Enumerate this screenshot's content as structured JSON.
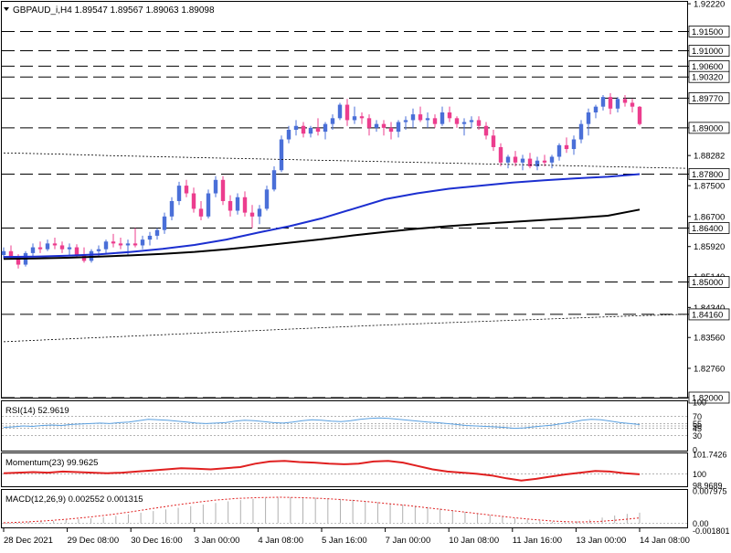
{
  "colors": {
    "bull": "#4a6fd8",
    "bear": "#ec3d8e",
    "ma_fast": "#1c2fd0",
    "ma_slow": "#000000",
    "rsi": "#5aa0e0",
    "momentum": "#e02020",
    "macd_hist": "#b0b0b0",
    "macd_signal": "#e02020",
    "level_line": "#000000",
    "label_bg": "#ffffff"
  },
  "chart_data": [
    {
      "type": "candlestick",
      "title": "GBPAUD_i,H4  1.89547 1.89567 1.89063 1.89098",
      "ylim": [
        1.82,
        1.9227
      ],
      "yticks": [
        "1.92220",
        "1.91500",
        "1.91000",
        "1.90600",
        "1.90320",
        "1.89770",
        "1.89000",
        "1.88282",
        "1.87800",
        "1.87500",
        "1.86700",
        "1.86400",
        "1.85920",
        "1.85140",
        "1.85000",
        "1.84340",
        "1.84160",
        "1.83560",
        "1.82760",
        "1.82000"
      ],
      "levels": [
        "1.91500",
        "1.91000",
        "1.90600",
        "1.90320",
        "1.89770",
        "1.89000",
        "1.87800",
        "1.86400",
        "1.85000",
        "1.84160",
        "1.82000"
      ],
      "xticks": [
        "28 Dec 2021",
        "29 Dec 08:00",
        "30 Dec 16:00",
        "3 Jan 00:00",
        "4 Jan 08:00",
        "5 Jan 16:00",
        "7 Jan 00:00",
        "10 Jan 08:00",
        "11 Jan 16:00",
        "13 Jan 00:00",
        "14 Jan 08:00"
      ],
      "candles": [
        [
          1.857,
          1.859,
          1.856,
          1.858
        ],
        [
          1.858,
          1.8595,
          1.856,
          1.8565
        ],
        [
          1.8565,
          1.8572,
          1.8535,
          1.8545
        ],
        [
          1.8545,
          1.858,
          1.854,
          1.8575
        ],
        [
          1.8575,
          1.86,
          1.8565,
          1.859
        ],
        [
          1.859,
          1.8605,
          1.8575,
          1.8585
        ],
        [
          1.8585,
          1.861,
          1.858,
          1.86
        ],
        [
          1.86,
          1.8615,
          1.8585,
          1.8595
        ],
        [
          1.8595,
          1.8605,
          1.8575,
          1.8585
        ],
        [
          1.8585,
          1.86,
          1.857,
          1.859
        ],
        [
          1.859,
          1.8598,
          1.8565,
          1.857
        ],
        [
          1.857,
          1.859,
          1.855,
          1.8555
        ],
        [
          1.8555,
          1.8585,
          1.855,
          1.858
        ],
        [
          1.858,
          1.8595,
          1.8565,
          1.8585
        ],
        [
          1.8585,
          1.861,
          1.8575,
          1.8605
        ],
        [
          1.8605,
          1.8625,
          1.859,
          1.86
        ],
        [
          1.86,
          1.8615,
          1.8585,
          1.8595
        ],
        [
          1.8595,
          1.861,
          1.857,
          1.86
        ],
        [
          1.86,
          1.864,
          1.859,
          1.8595
        ],
        [
          1.8595,
          1.862,
          1.8585,
          1.861
        ],
        [
          1.861,
          1.863,
          1.8595,
          1.862
        ],
        [
          1.862,
          1.864,
          1.861,
          1.8635
        ],
        [
          1.8635,
          1.868,
          1.8625,
          1.867
        ],
        [
          1.867,
          1.872,
          1.866,
          1.871
        ],
        [
          1.871,
          1.876,
          1.87,
          1.875
        ],
        [
          1.875,
          1.8765,
          1.872,
          1.873
        ],
        [
          1.873,
          1.8745,
          1.868,
          1.869
        ],
        [
          1.869,
          1.871,
          1.866,
          1.867
        ],
        [
          1.867,
          1.874,
          1.8665,
          1.873
        ],
        [
          1.873,
          1.8775,
          1.872,
          1.8765
        ],
        [
          1.8765,
          1.8775,
          1.87,
          1.871
        ],
        [
          1.871,
          1.8725,
          1.867,
          1.8685
        ],
        [
          1.8685,
          1.873,
          1.8675,
          1.872
        ],
        [
          1.872,
          1.8735,
          1.867,
          1.868
        ],
        [
          1.868,
          1.87,
          1.864,
          1.867
        ],
        [
          1.867,
          1.87,
          1.865,
          1.869
        ],
        [
          1.869,
          1.875,
          1.8685,
          1.874
        ],
        [
          1.874,
          1.88,
          1.8735,
          1.879
        ],
        [
          1.879,
          1.888,
          1.8785,
          1.887
        ],
        [
          1.887,
          1.8905,
          1.886,
          1.8895
        ],
        [
          1.8895,
          1.892,
          1.888,
          1.8905
        ],
        [
          1.8905,
          1.8915,
          1.8875,
          1.8885
        ],
        [
          1.8885,
          1.8905,
          1.8875,
          1.89
        ],
        [
          1.89,
          1.8925,
          1.888,
          1.889
        ],
        [
          1.889,
          1.8915,
          1.887,
          1.891
        ],
        [
          1.891,
          1.8935,
          1.8895,
          1.8925
        ],
        [
          1.8925,
          1.8965,
          1.892,
          1.896
        ],
        [
          1.896,
          1.8975,
          1.8905,
          1.892
        ],
        [
          1.892,
          1.8955,
          1.891,
          1.893
        ],
        [
          1.893,
          1.894,
          1.891,
          1.8925
        ],
        [
          1.8925,
          1.8935,
          1.888,
          1.89
        ],
        [
          1.89,
          1.892,
          1.889,
          1.891
        ],
        [
          1.891,
          1.892,
          1.888,
          1.89
        ],
        [
          1.89,
          1.8915,
          1.887,
          1.889
        ],
        [
          1.889,
          1.892,
          1.8875,
          1.8915
        ],
        [
          1.8915,
          1.893,
          1.8895,
          1.892
        ],
        [
          1.892,
          1.895,
          1.89,
          1.8935
        ],
        [
          1.8935,
          1.8955,
          1.8915,
          1.892
        ],
        [
          1.892,
          1.894,
          1.89,
          1.8925
        ],
        [
          1.8925,
          1.8935,
          1.89,
          1.891
        ],
        [
          1.891,
          1.8955,
          1.8905,
          1.894
        ],
        [
          1.894,
          1.8955,
          1.8915,
          1.8925
        ],
        [
          1.8925,
          1.893,
          1.89,
          1.891
        ],
        [
          1.891,
          1.8925,
          1.888,
          1.8915
        ],
        [
          1.8915,
          1.893,
          1.89,
          1.892
        ],
        [
          1.892,
          1.893,
          1.8895,
          1.8905
        ],
        [
          1.8905,
          1.8915,
          1.887,
          1.888
        ],
        [
          1.888,
          1.8895,
          1.884,
          1.885
        ],
        [
          1.885,
          1.886,
          1.88,
          1.881
        ],
        [
          1.881,
          1.883,
          1.8795,
          1.8825
        ],
        [
          1.8825,
          1.884,
          1.88,
          1.881
        ],
        [
          1.881,
          1.883,
          1.879,
          1.882
        ],
        [
          1.882,
          1.8835,
          1.8795,
          1.88
        ],
        [
          1.88,
          1.8825,
          1.879,
          1.8815
        ],
        [
          1.8815,
          1.883,
          1.88,
          1.881
        ],
        [
          1.881,
          1.883,
          1.8795,
          1.8825
        ],
        [
          1.8825,
          1.886,
          1.8815,
          1.8855
        ],
        [
          1.8855,
          1.8875,
          1.8835,
          1.8845
        ],
        [
          1.8845,
          1.888,
          1.883,
          1.887
        ],
        [
          1.887,
          1.892,
          1.886,
          1.891
        ],
        [
          1.891,
          1.895,
          1.888,
          1.894
        ],
        [
          1.894,
          1.896,
          1.8925,
          1.8955
        ],
        [
          1.8955,
          1.8985,
          1.8945,
          1.898
        ],
        [
          1.898,
          1.899,
          1.8935,
          1.895
        ],
        [
          1.895,
          1.898,
          1.894,
          1.8975
        ],
        [
          1.8975,
          1.8985,
          1.8955,
          1.8965
        ],
        [
          1.8965,
          1.8975,
          1.894,
          1.8955
        ],
        [
          1.89547,
          1.89567,
          1.89063,
          1.89098
        ]
      ],
      "ma_fast": [
        1.8565,
        1.8566,
        1.8568,
        1.8572,
        1.8578,
        1.8586,
        1.8596,
        1.861,
        1.8628,
        1.8645,
        1.8665,
        1.869,
        1.8715,
        1.873,
        1.8742,
        1.875,
        1.8758,
        1.8764,
        1.8769,
        1.8773,
        1.878
      ],
      "ma_slow": [
        1.856,
        1.8561,
        1.8563,
        1.8566,
        1.8569,
        1.8573,
        1.8578,
        1.8585,
        1.8593,
        1.8602,
        1.8611,
        1.8621,
        1.863,
        1.8638,
        1.8645,
        1.8651,
        1.8656,
        1.8661,
        1.8666,
        1.8672,
        1.8688
      ],
      "trend_upper": [
        1.8835,
        1.8832,
        1.8828,
        1.8825,
        1.8822,
        1.8819,
        1.8816,
        1.8813,
        1.881,
        1.8807,
        1.8804,
        1.8801,
        1.8798,
        1.8795
      ],
      "trend_lower": [
        1.8345,
        1.8351,
        1.8357,
        1.8363,
        1.8369,
        1.8375,
        1.8381,
        1.8387,
        1.8392,
        1.8397,
        1.8402,
        1.8407,
        1.8412,
        1.8416
      ]
    },
    {
      "type": "line",
      "title": "RSI(14) 52.9619",
      "ylim": [
        0,
        100
      ],
      "yticks": [
        "100",
        "70",
        "50",
        "30",
        "0"
      ],
      "extra_labels": [
        "55",
        "45"
      ],
      "levels": [
        70,
        55,
        50,
        45,
        30
      ],
      "values": [
        47,
        48,
        50,
        49,
        51,
        52,
        51,
        53,
        54,
        55,
        56,
        55,
        57,
        58,
        61,
        64,
        63,
        62,
        60,
        58,
        56,
        55,
        56,
        57,
        60,
        62,
        61,
        59,
        57,
        56,
        58,
        61,
        63,
        62,
        60,
        59,
        61,
        64,
        66,
        67,
        66,
        64,
        62,
        60,
        58,
        57,
        55,
        53,
        51,
        50,
        49,
        48,
        47,
        45,
        46,
        48,
        50,
        52,
        55,
        58,
        62,
        64,
        63,
        60,
        57,
        55,
        52.96
      ]
    },
    {
      "type": "line",
      "title": "Momentum(23) 99.9625",
      "ylim": [
        98.9689,
        101.7426
      ],
      "yticks": [
        "101.7426",
        "100",
        "98.9689"
      ],
      "level": 100,
      "values": [
        100.05,
        100.1,
        100.15,
        100.1,
        100.2,
        100.15,
        100.1,
        100.05,
        100.1,
        100.2,
        100.3,
        100.4,
        100.5,
        100.45,
        100.4,
        100.5,
        100.6,
        100.9,
        101.1,
        101.15,
        101.05,
        101.0,
        100.9,
        100.85,
        100.9,
        101.1,
        101.15,
        101.0,
        100.7,
        100.4,
        100.2,
        100.1,
        100.0,
        99.85,
        99.6,
        99.4,
        99.55,
        99.75,
        99.95,
        100.1,
        100.25,
        100.2,
        100.05,
        99.96
      ]
    },
    {
      "type": "bar",
      "title": "MACD(12,26,9) 0.002552 0.001315",
      "ylim": [
        -0.0008,
        0.007975
      ],
      "yticks": [
        "0.007975",
        "0.00",
        "-0.001801"
      ],
      "hist": [
        0.0002,
        0.0003,
        0.0004,
        0.0005,
        0.0006,
        0.0008,
        0.001,
        0.0012,
        0.0015,
        0.0018,
        0.0022,
        0.0026,
        0.003,
        0.0034,
        0.0038,
        0.0042,
        0.0046,
        0.005,
        0.0054,
        0.0057,
        0.006,
        0.0062,
        0.0063,
        0.0064,
        0.0064,
        0.0063,
        0.0062,
        0.006,
        0.0058,
        0.0055,
        0.0052,
        0.0049,
        0.0046,
        0.0043,
        0.004,
        0.0036,
        0.0032,
        0.0028,
        0.0024,
        0.002,
        0.0016,
        0.0012,
        0.0009,
        0.0006,
        0.0004,
        0.0003,
        0.0005,
        0.0009,
        0.0014,
        0.0019,
        0.0023,
        0.0026
      ],
      "signal": [
        0.0001,
        0.0003,
        0.0006,
        0.001,
        0.0015,
        0.0021,
        0.0028,
        0.0036,
        0.0044,
        0.0051,
        0.0057,
        0.0061,
        0.0063,
        0.0064,
        0.0063,
        0.0061,
        0.0058,
        0.0054,
        0.0049,
        0.0044,
        0.0038,
        0.0032,
        0.0026,
        0.002,
        0.0014,
        0.0009,
        0.0005,
        0.0003,
        0.0004,
        0.0008,
        0.00132
      ]
    }
  ]
}
